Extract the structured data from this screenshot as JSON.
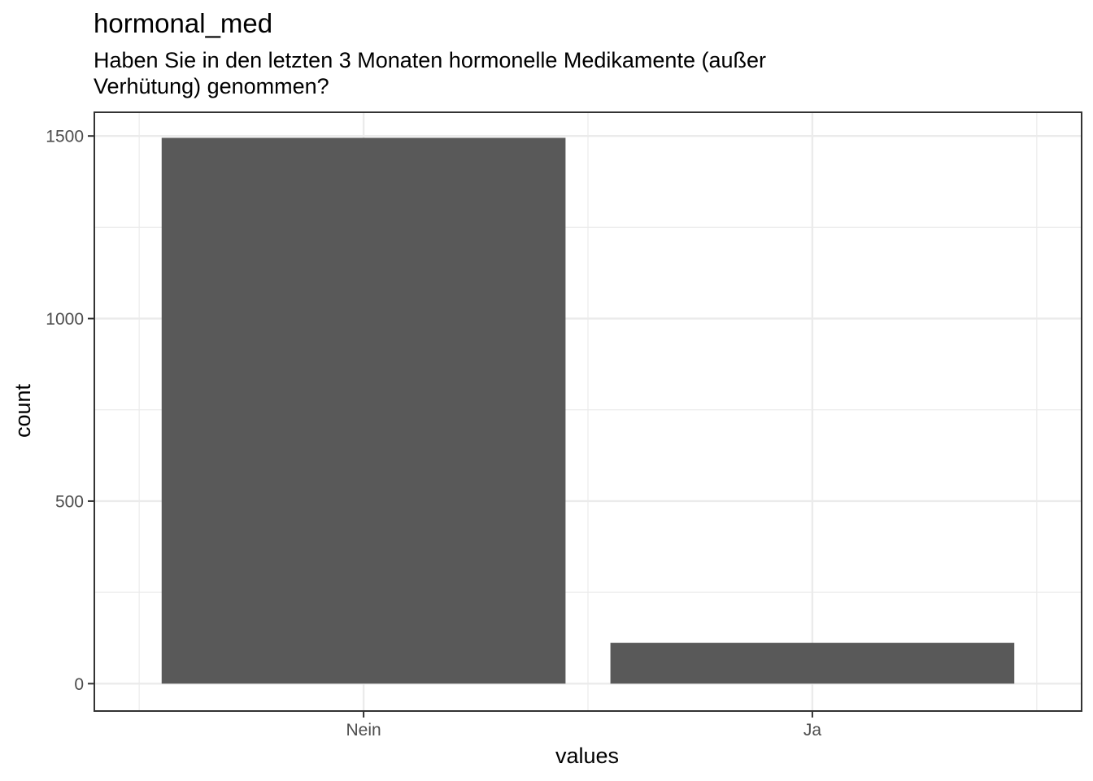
{
  "chart_data": {
    "type": "bar",
    "title": "hormonal_med",
    "subtitle_lines": [
      "Haben Sie in den letzten 3 Monaten hormonelle Medikamente (außer",
      "Verhütung) genommen?"
    ],
    "xlabel": "values",
    "ylabel": "count",
    "categories": [
      "Nein",
      "Ja"
    ],
    "values": [
      1495,
      112
    ],
    "ylim": [
      -75,
      1565
    ],
    "yticks": [
      0,
      500,
      1000,
      1500
    ],
    "ytick_labels": [
      "0",
      "500",
      "1000",
      "1500"
    ],
    "grid": true,
    "legend": "none",
    "colors": {
      "bar": "#595959",
      "grid": "#ebebeb",
      "panel_border": "#333333",
      "tick_text": "#4d4d4d"
    }
  }
}
